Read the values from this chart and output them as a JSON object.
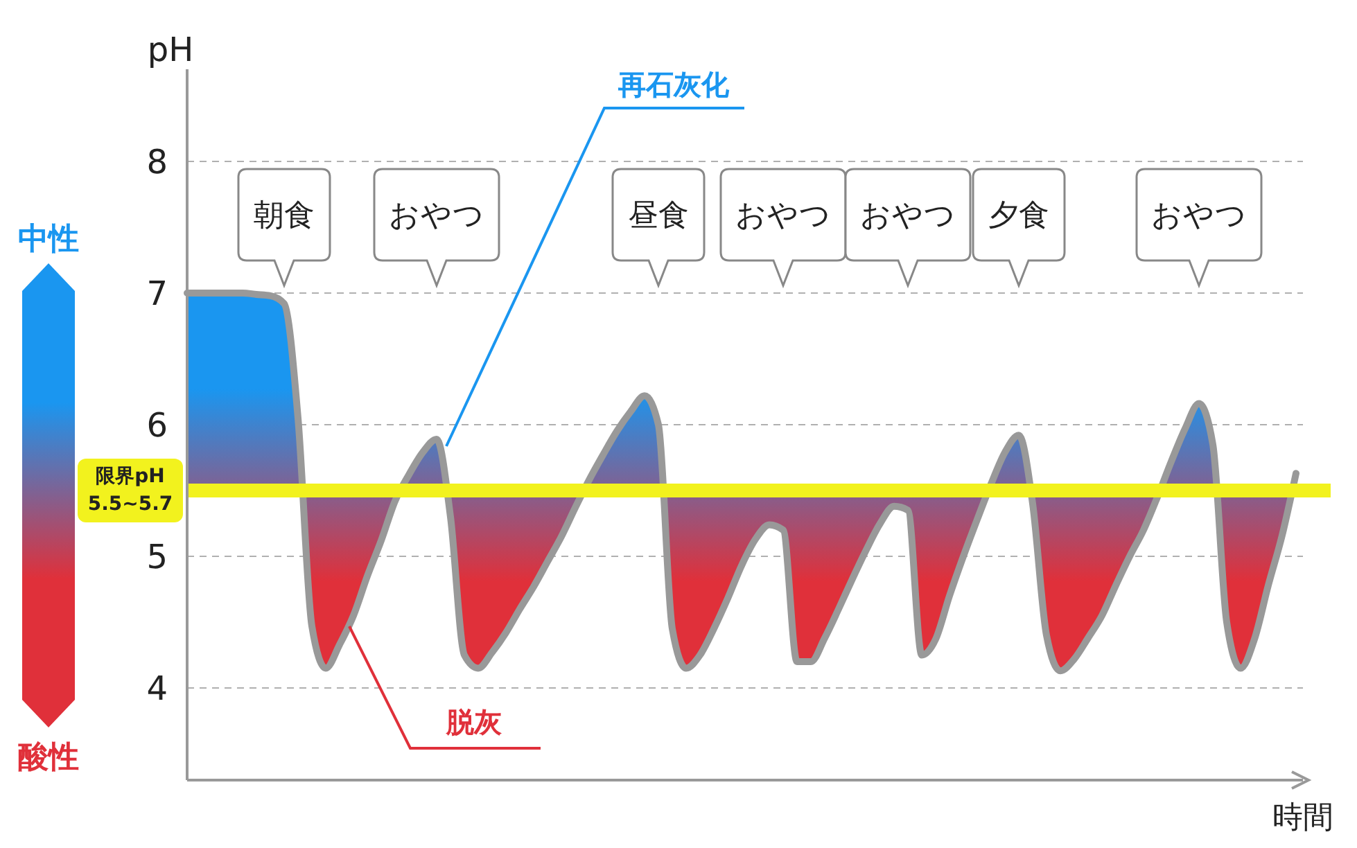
{
  "chart_data": {
    "type": "area",
    "xlabel": "時間",
    "ylabel": "pH",
    "categories": [
      null,
      null,
      null,
      null,
      null,
      null,
      null,
      null,
      null,
      null,
      null,
      null,
      null,
      null,
      null,
      null,
      null,
      null,
      null,
      null,
      null,
      null,
      null,
      null,
      null,
      null,
      null,
      null,
      null,
      null,
      null,
      null,
      null,
      null,
      null,
      null,
      null,
      null,
      null,
      null,
      null,
      null,
      null,
      null,
      null,
      null,
      null,
      null,
      null,
      null,
      null,
      null,
      null,
      null,
      null,
      null,
      null,
      null,
      null,
      null,
      null,
      null,
      null,
      null,
      null,
      null,
      null,
      null,
      null,
      null,
      null,
      null,
      null,
      null,
      null,
      null,
      null,
      null,
      null,
      null,
      null
    ],
    "series": [
      {
        "color": "#999999",
        "values": [
          7.0,
          7.0,
          7.0,
          7.0,
          7.0,
          6.99,
          6.98,
          6.92,
          6.05,
          4.47,
          4.15,
          4.33,
          4.55,
          4.85,
          5.12,
          5.42,
          5.62,
          5.79,
          5.89,
          5.3,
          4.25,
          4.15,
          4.27,
          4.42,
          4.6,
          4.77,
          4.96,
          5.15,
          5.37,
          5.58,
          5.77,
          5.95,
          6.1,
          6.22,
          6.0,
          4.45,
          4.15,
          4.25,
          4.45,
          4.68,
          4.93,
          5.13,
          5.24,
          5.2,
          4.2,
          4.2,
          4.38,
          4.6,
          4.83,
          5.05,
          5.25,
          5.38,
          5.35,
          4.25,
          4.37,
          4.7,
          5.0,
          5.28,
          5.55,
          5.79,
          5.92,
          5.4,
          4.4,
          4.13,
          4.22,
          4.38,
          4.55,
          4.78,
          5.0,
          5.2,
          5.45,
          5.72,
          5.97,
          6.16,
          5.85,
          4.5,
          4.15,
          4.37,
          4.78,
          5.16,
          5.63
        ]
      }
    ],
    "ylim": [
      3.3,
      8.7
    ],
    "yticks": [
      4,
      5,
      6,
      7,
      8
    ],
    "grid": "y",
    "ref_lines": [
      {
        "axis": "y",
        "value": 5.5,
        "label": "限界pH\n5.5~5.7",
        "color": "#f2f21e"
      }
    ],
    "annotations": [
      "朝食",
      "おやつ",
      "昼食",
      "おやつ",
      "おやつ",
      "夕食",
      "おやつ",
      "再石灰化",
      "脱灰",
      "中性",
      "酸性"
    ]
  }
}
